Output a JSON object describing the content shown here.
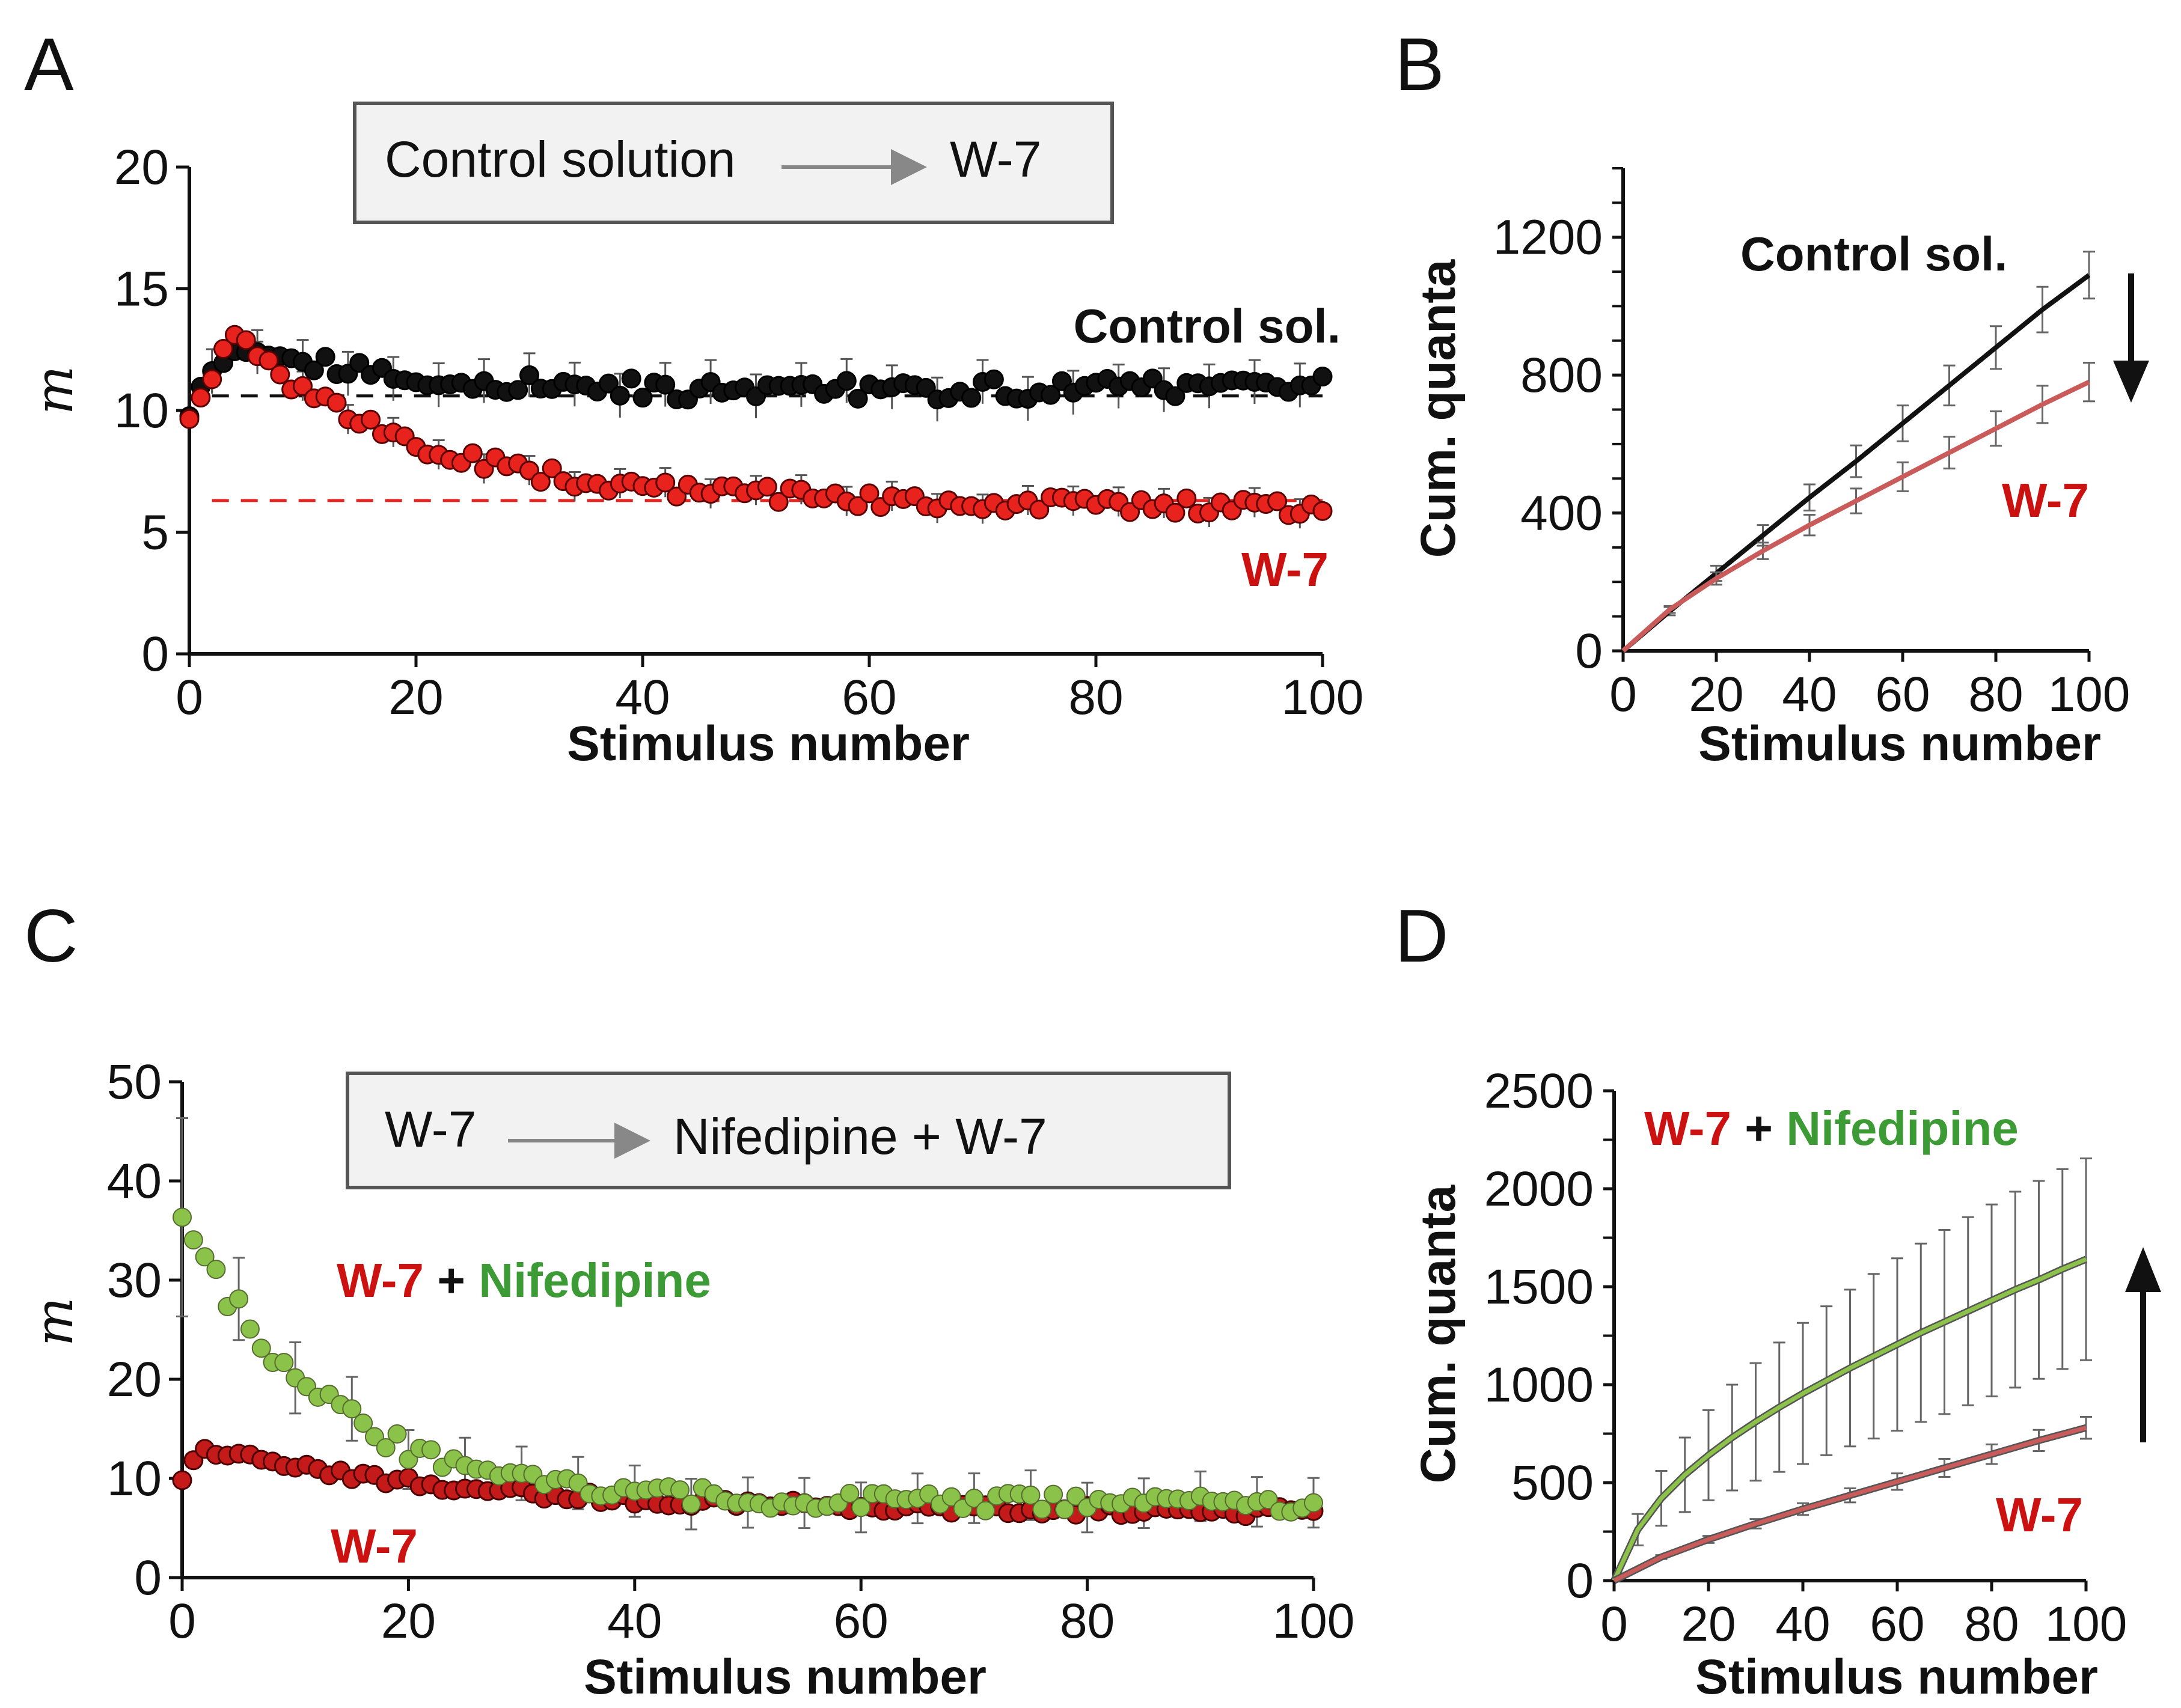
{
  "colors": {
    "control": "#111111",
    "w7_marker": "#e8221c",
    "w7_marker_dark": "#c41a1a",
    "w7_line": "#c95b5b",
    "w7_text": "#cc1111",
    "nif_marker": "#8bc34a",
    "nif_text": "#3d9b35",
    "nif_line": "#8cc24a",
    "errbar": "#666666",
    "box_fill": "#f2f2f2",
    "box_edge": "#555555",
    "arrow_gray": "#888888"
  },
  "chart_data": [
    {
      "panel": "A",
      "type": "scatter",
      "panel_label": "A",
      "xlabel": "Stimulus number",
      "ylabel": "m",
      "xlim": [
        0,
        100
      ],
      "ylim": [
        0,
        20
      ],
      "xticks": [
        "0",
        "20",
        "40",
        "60",
        "80",
        "100"
      ],
      "yticks": [
        "0",
        "5",
        "10",
        "15",
        "20"
      ],
      "legend_box": {
        "from": "Control solution",
        "to": "W-7"
      },
      "annotations": {
        "control": "Control sol.",
        "w7": "W-7"
      },
      "reference_lines": {
        "control": 10.6,
        "w7": 6.3
      },
      "series": [
        {
          "name": "Control sol.",
          "start": 10.0,
          "peak_at": 4,
          "peak": 12.8,
          "plateau": 10.6,
          "tail": 11.0,
          "noise": 0.45,
          "err_every": 4,
          "err": 0.9
        },
        {
          "name": "W-7",
          "start": 9.6,
          "peak_at": 4,
          "peak": 13.2,
          "plateau": 6.6,
          "tail": 6.0,
          "noise": 0.35,
          "err_every": 4,
          "err": 0.6
        }
      ]
    },
    {
      "panel": "B",
      "type": "line",
      "panel_label": "B",
      "xlabel": "Stimulus number",
      "ylabel": "Cum. quanta",
      "xlim": [
        0,
        100
      ],
      "ylim": [
        0,
        1400
      ],
      "xticks": [
        "0",
        "20",
        "40",
        "60",
        "80",
        "100"
      ],
      "yticks": [
        "0",
        "400",
        "800",
        "1200"
      ],
      "annotations": {
        "control": "Control sol.",
        "w7": "W-7"
      },
      "series": [
        {
          "name": "Control sol.",
          "x": [
            0,
            10,
            20,
            30,
            40,
            50,
            60,
            70,
            80,
            90,
            100
          ],
          "values": [
            0,
            115,
            225,
            335,
            445,
            550,
            660,
            770,
            880,
            990,
            1090
          ],
          "err": [
            0,
            12,
            22,
            30,
            38,
            46,
            52,
            58,
            62,
            66,
            68
          ]
        },
        {
          "name": "W-7",
          "x": [
            0,
            10,
            20,
            30,
            40,
            50,
            60,
            70,
            80,
            90,
            100
          ],
          "values": [
            0,
            120,
            210,
            290,
            365,
            435,
            505,
            575,
            645,
            715,
            780
          ],
          "err": [
            0,
            10,
            18,
            24,
            30,
            36,
            42,
            46,
            50,
            54,
            56
          ]
        }
      ],
      "arrow": "down"
    },
    {
      "panel": "C",
      "type": "scatter",
      "panel_label": "C",
      "xlabel": "Stimulus number",
      "ylabel": "m",
      "xlim": [
        0,
        100
      ],
      "ylim": [
        0,
        50
      ],
      "xticks": [
        "0",
        "20",
        "40",
        "60",
        "80",
        "100"
      ],
      "yticks": [
        "0",
        "10",
        "20",
        "30",
        "40",
        "50"
      ],
      "legend_box": {
        "from": "W-7",
        "to": "Nifedipine + W-7"
      },
      "annotations": {
        "w7": "W-7",
        "plus": " + ",
        "nif": "Nifedipine",
        "w7_bottom": "W-7"
      },
      "series": [
        {
          "name": "Nifedipine + W-7",
          "start": 36.5,
          "decay_to": 7.5,
          "tau": 12,
          "noise": 0.9,
          "err_first": 10,
          "err_every": 5,
          "err": 2.5
        },
        {
          "name": "W-7",
          "start": 9.8,
          "peak": 13.0,
          "decay_to": 6.5,
          "tau": 25,
          "noise": 0.5,
          "err_every": 0,
          "err": 0
        }
      ]
    },
    {
      "panel": "D",
      "type": "line",
      "panel_label": "D",
      "xlabel": "Stimulus number",
      "ylabel": "Cum. quanta",
      "xlim": [
        0,
        100
      ],
      "ylim": [
        0,
        2500
      ],
      "xticks": [
        "0",
        "20",
        "40",
        "60",
        "80",
        "100"
      ],
      "yticks": [
        "0",
        "500",
        "1000",
        "1500",
        "2000",
        "2500"
      ],
      "annotations": {
        "w7": "W-7",
        "plus": " + ",
        "nif": "Nifedipine",
        "w7_bottom": "W-7"
      },
      "series": [
        {
          "name": "Nifedipine + W-7",
          "x": [
            0,
            5,
            10,
            15,
            20,
            25,
            30,
            35,
            40,
            45,
            50,
            55,
            60,
            65,
            70,
            75,
            80,
            85,
            90,
            95,
            100
          ],
          "values": [
            0,
            260,
            420,
            540,
            640,
            730,
            810,
            885,
            955,
            1020,
            1085,
            1145,
            1205,
            1265,
            1320,
            1375,
            1430,
            1485,
            1535,
            1590,
            1640
          ],
          "err": [
            0,
            80,
            140,
            190,
            230,
            270,
            300,
            330,
            360,
            380,
            400,
            420,
            440,
            455,
            470,
            480,
            490,
            500,
            505,
            510,
            515
          ]
        },
        {
          "name": "W-7",
          "x": [
            0,
            10,
            20,
            30,
            40,
            50,
            60,
            70,
            80,
            90,
            100
          ],
          "values": [
            0,
            120,
            210,
            290,
            365,
            435,
            505,
            575,
            645,
            715,
            780
          ],
          "err": [
            0,
            10,
            18,
            24,
            30,
            36,
            42,
            46,
            50,
            54,
            56
          ]
        }
      ],
      "arrow": "up"
    }
  ]
}
